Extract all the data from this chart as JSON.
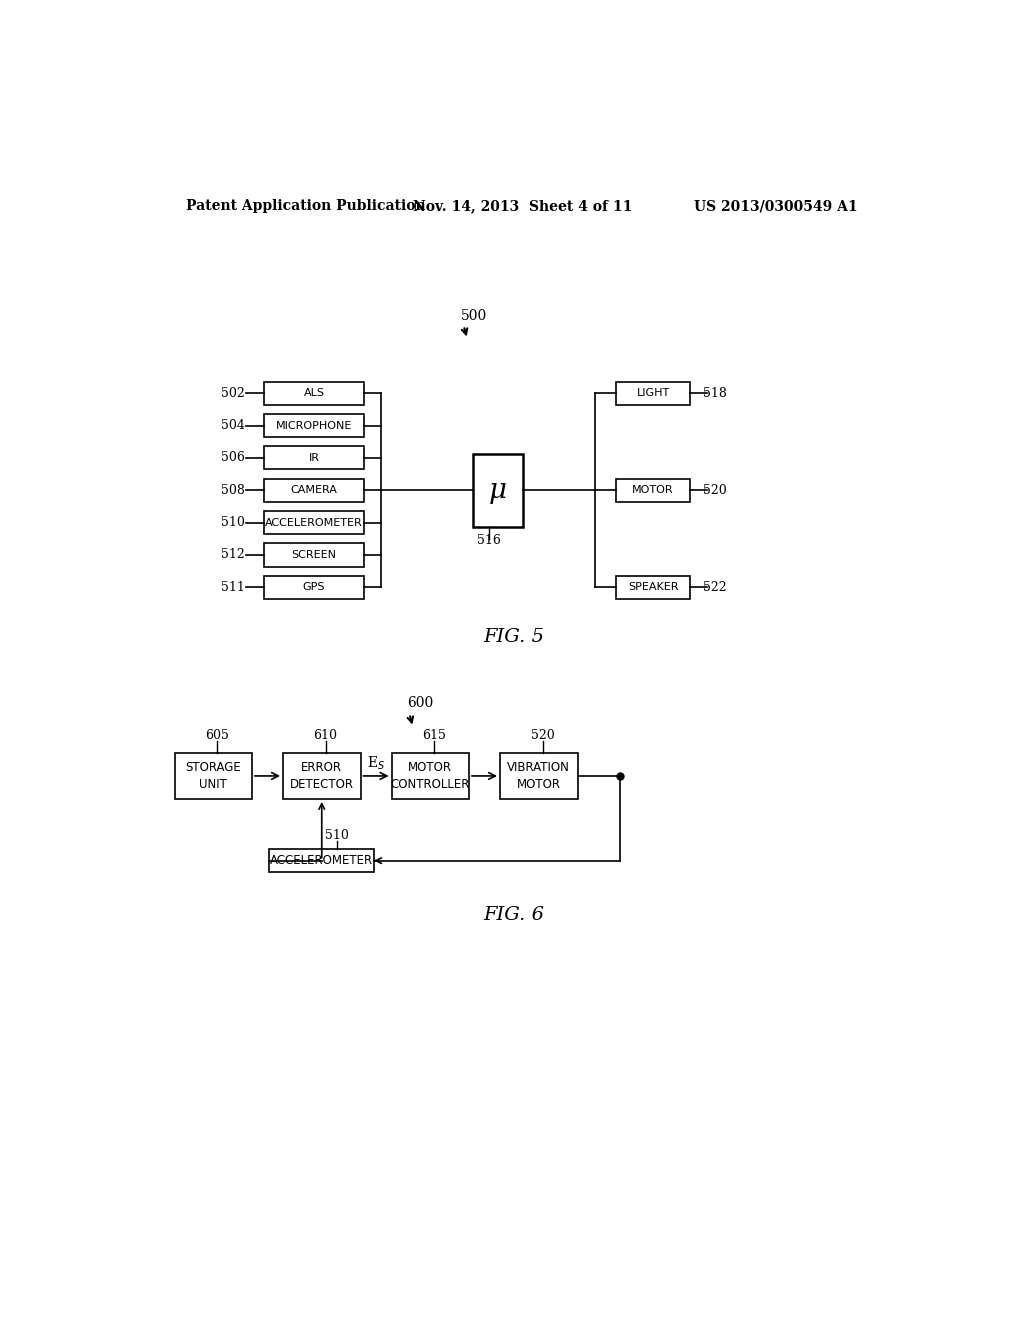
{
  "bg_color": "#ffffff",
  "text_color": "#000000",
  "header_left": "Patent Application Publication",
  "header_mid": "Nov. 14, 2013  Sheet 4 of 11",
  "header_right": "US 2013/0300549 A1",
  "fig5_label": "FIG. 5",
  "fig6_label": "FIG. 6",
  "fig5_ref": "500",
  "fig6_ref": "600",
  "fig5_inputs": [
    {
      "label": "ALS",
      "ref": "502"
    },
    {
      "label": "MICROPHONE",
      "ref": "504"
    },
    {
      "label": "IR",
      "ref": "506"
    },
    {
      "label": "CAMERA",
      "ref": "508"
    },
    {
      "label": "ACCELEROMETER",
      "ref": "510"
    },
    {
      "label": "SCREEN",
      "ref": "512"
    },
    {
      "label": "GPS",
      "ref": "511"
    }
  ],
  "fig5_center": {
    "label": "μ",
    "ref": "516"
  },
  "fig5_outputs": [
    {
      "label": "LIGHT",
      "ref": "518"
    },
    {
      "label": "MOTOR",
      "ref": "520"
    },
    {
      "label": "SPEAKER",
      "ref": "522"
    }
  ],
  "fig6_boxes": [
    {
      "label": "STORAGE\nUNIT",
      "ref": "605"
    },
    {
      "label": "ERROR\nDETECTOR",
      "ref": "610"
    },
    {
      "label": "MOTOR\nCONTROLLER",
      "ref": "615"
    },
    {
      "label": "VIBRATION\nMOTOR",
      "ref": "520"
    }
  ],
  "fig6_bottom": {
    "label": "ACCELEROMETER",
    "ref": "510"
  },
  "fig6_signal": "E$_S$"
}
